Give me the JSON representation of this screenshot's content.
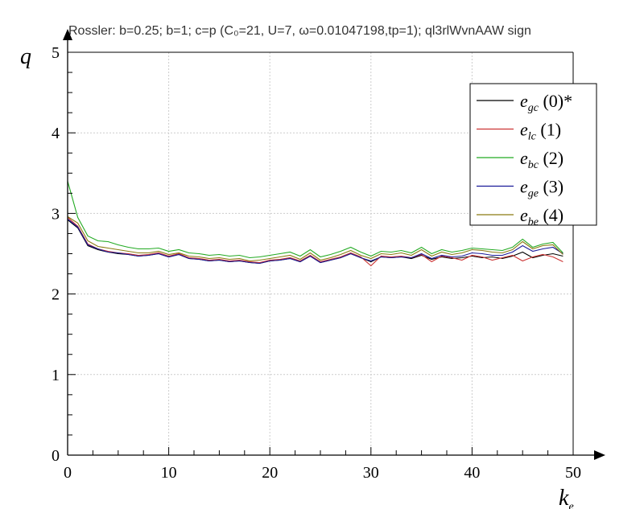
{
  "chart_data": {
    "type": "line",
    "title": "Rossler: b=0.25; b=1; c=p (C₀=21, U=7, ω=0.01047198,tp=1); ql3rlWvnAAW sign",
    "xlabel": "k",
    "xlabel_sub": "e",
    "ylabel": "q",
    "xlim": [
      0,
      50
    ],
    "ylim": [
      0,
      5
    ],
    "xticks": [
      "0",
      "10",
      "20",
      "30",
      "40",
      "50"
    ],
    "yticks": [
      "0",
      "1",
      "2",
      "3",
      "4",
      "5"
    ],
    "grid": true,
    "legend_position": "top-right",
    "x": [
      0,
      1,
      2,
      3,
      4,
      5,
      6,
      7,
      8,
      9,
      10,
      11,
      12,
      13,
      14,
      15,
      16,
      17,
      18,
      19,
      20,
      21,
      22,
      23,
      24,
      25,
      26,
      27,
      28,
      29,
      30,
      31,
      32,
      33,
      34,
      35,
      36,
      37,
      38,
      39,
      40,
      41,
      42,
      43,
      44,
      45,
      46,
      47,
      48,
      49
    ],
    "series": [
      {
        "label_main": "e",
        "label_sub": "gc",
        "label_suffix": " (0)*",
        "color": "#000000",
        "values": [
          2.92,
          2.82,
          2.6,
          2.55,
          2.52,
          2.5,
          2.49,
          2.47,
          2.48,
          2.5,
          2.46,
          2.49,
          2.44,
          2.43,
          2.41,
          2.42,
          2.4,
          2.41,
          2.39,
          2.38,
          2.41,
          2.42,
          2.44,
          2.4,
          2.47,
          2.39,
          2.42,
          2.45,
          2.5,
          2.45,
          2.4,
          2.46,
          2.45,
          2.46,
          2.44,
          2.48,
          2.43,
          2.46,
          2.44,
          2.45,
          2.47,
          2.45,
          2.46,
          2.44,
          2.47,
          2.52,
          2.45,
          2.48,
          2.5,
          2.47
        ]
      },
      {
        "label_main": "e",
        "label_sub": "lc",
        "label_suffix": " (1)",
        "color": "#cc3333",
        "values": [
          2.95,
          2.84,
          2.62,
          2.56,
          2.53,
          2.51,
          2.5,
          2.48,
          2.49,
          2.51,
          2.47,
          2.5,
          2.45,
          2.44,
          2.42,
          2.43,
          2.41,
          2.42,
          2.4,
          2.39,
          2.42,
          2.43,
          2.45,
          2.41,
          2.48,
          2.4,
          2.43,
          2.46,
          2.51,
          2.46,
          2.35,
          2.47,
          2.46,
          2.47,
          2.45,
          2.49,
          2.4,
          2.47,
          2.45,
          2.42,
          2.48,
          2.46,
          2.42,
          2.45,
          2.48,
          2.41,
          2.46,
          2.49,
          2.46,
          2.4
        ]
      },
      {
        "label_main": "e",
        "label_sub": "bc",
        "label_suffix": " (2)",
        "color": "#22aa22",
        "values": [
          3.4,
          2.95,
          2.72,
          2.66,
          2.65,
          2.61,
          2.58,
          2.56,
          2.56,
          2.57,
          2.53,
          2.55,
          2.51,
          2.5,
          2.48,
          2.49,
          2.47,
          2.48,
          2.45,
          2.46,
          2.48,
          2.5,
          2.52,
          2.47,
          2.55,
          2.46,
          2.49,
          2.53,
          2.58,
          2.52,
          2.47,
          2.53,
          2.52,
          2.54,
          2.51,
          2.58,
          2.5,
          2.55,
          2.52,
          2.54,
          2.57,
          2.56,
          2.55,
          2.54,
          2.58,
          2.68,
          2.58,
          2.62,
          2.64,
          2.51
        ]
      },
      {
        "label_main": "e",
        "label_sub": "ge",
        "label_suffix": " (3)",
        "color": "#1a1a99",
        "values": [
          2.93,
          2.83,
          2.61,
          2.56,
          2.52,
          2.51,
          2.49,
          2.47,
          2.48,
          2.5,
          2.46,
          2.49,
          2.44,
          2.43,
          2.41,
          2.42,
          2.4,
          2.41,
          2.39,
          2.38,
          2.41,
          2.42,
          2.44,
          2.4,
          2.47,
          2.39,
          2.42,
          2.45,
          2.5,
          2.45,
          2.41,
          2.46,
          2.45,
          2.46,
          2.45,
          2.5,
          2.44,
          2.48,
          2.46,
          2.47,
          2.51,
          2.5,
          2.48,
          2.48,
          2.52,
          2.6,
          2.53,
          2.56,
          2.58,
          2.5
        ]
      },
      {
        "label_main": "e",
        "label_sub": "be",
        "label_suffix": " (4)",
        "color": "#8a7a10",
        "values": [
          2.96,
          2.88,
          2.66,
          2.59,
          2.57,
          2.55,
          2.53,
          2.51,
          2.51,
          2.53,
          2.49,
          2.51,
          2.47,
          2.46,
          2.44,
          2.45,
          2.43,
          2.44,
          2.41,
          2.42,
          2.44,
          2.46,
          2.48,
          2.43,
          2.51,
          2.42,
          2.45,
          2.49,
          2.54,
          2.48,
          2.44,
          2.5,
          2.49,
          2.51,
          2.48,
          2.55,
          2.47,
          2.52,
          2.49,
          2.51,
          2.55,
          2.54,
          2.52,
          2.51,
          2.55,
          2.65,
          2.56,
          2.6,
          2.61,
          2.49
        ]
      }
    ]
  }
}
